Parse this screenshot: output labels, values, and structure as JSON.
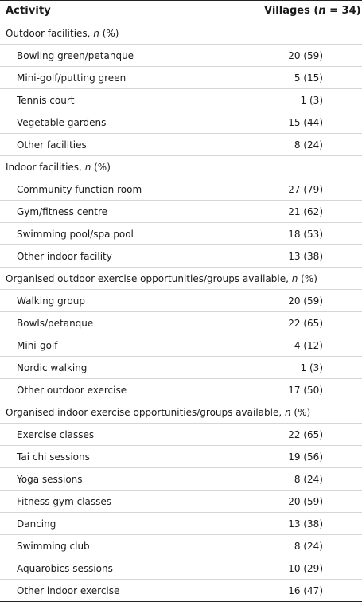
{
  "header": {
    "activity": "Activity",
    "villages_prefix": "Villages (",
    "villages_n": "n",
    "villages_suffix": " = 34)"
  },
  "sections": [
    {
      "title": "Outdoor facilities, ",
      "title_italic": "n",
      "title_suffix": " (%)",
      "items": [
        {
          "label": "Bowling green/petanque",
          "value": "20 (59)"
        },
        {
          "label": "Mini-golf/putting green",
          "value": "5 (15)"
        },
        {
          "label": "Tennis court",
          "value": "1 (3)"
        },
        {
          "label": "Vegetable gardens",
          "value": "15 (44)"
        },
        {
          "label": "Other facilities",
          "value": "8 (24)"
        }
      ]
    },
    {
      "title": "Indoor facilities, ",
      "title_italic": "n",
      "title_suffix": " (%)",
      "items": [
        {
          "label": "Community function room",
          "value": "27 (79)"
        },
        {
          "label": "Gym/fitness centre",
          "value": "21 (62)"
        },
        {
          "label": "Swimming pool/spa pool",
          "value": "18 (53)"
        },
        {
          "label": "Other indoor facility",
          "value": "13 (38)"
        }
      ]
    },
    {
      "title": "Organised outdoor exercise opportunities/groups available, ",
      "title_italic": "n",
      "title_suffix": " (%)",
      "items": [
        {
          "label": "Walking group",
          "value": "20 (59)"
        },
        {
          "label": "Bowls/petanque",
          "value": "22 (65)"
        },
        {
          "label": "Mini-golf",
          "value": "4 (12)"
        },
        {
          "label": "Nordic walking",
          "value": "1 (3)"
        },
        {
          "label": "Other outdoor exercise",
          "value": "17 (50)"
        }
      ]
    },
    {
      "title": "Organised indoor exercise opportunities/groups available, ",
      "title_italic": "n",
      "title_suffix": " (%)",
      "items": [
        {
          "label": "Exercise classes",
          "value": "22 (65)"
        },
        {
          "label": "Tai chi sessions",
          "value": "19 (56)"
        },
        {
          "label": "Yoga sessions",
          "value": "8 (24)"
        },
        {
          "label": "Fitness gym classes",
          "value": "20 (59)"
        },
        {
          "label": "Dancing",
          "value": "13 (38)"
        },
        {
          "label": "Swimming club",
          "value": "8 (24)"
        },
        {
          "label": "Aquarobics sessions",
          "value": "10 (29)"
        },
        {
          "label": "Other indoor exercise",
          "value": "16 (47)"
        }
      ]
    }
  ]
}
